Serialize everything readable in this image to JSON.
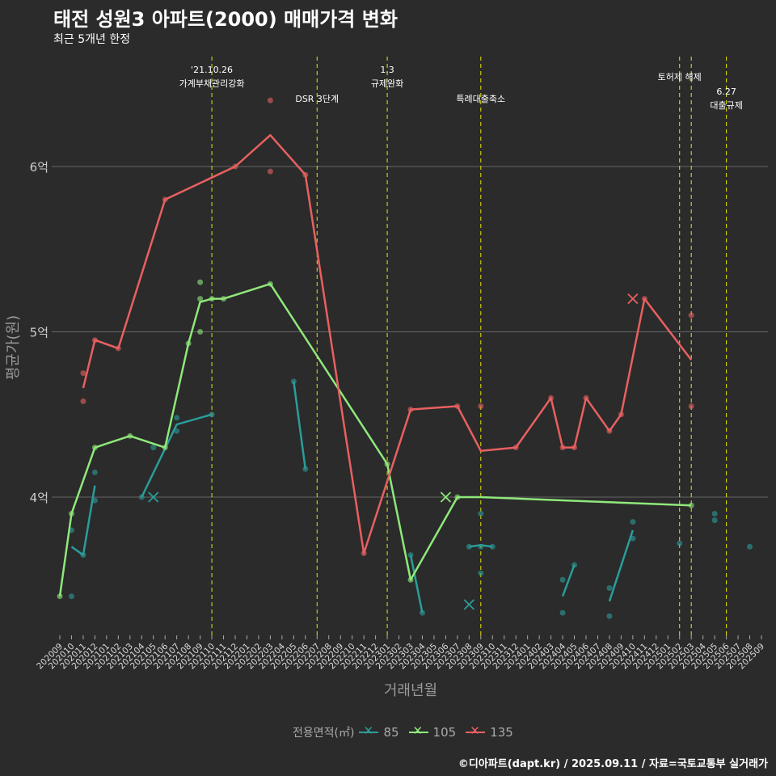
{
  "header": {
    "title": "태전 성원3 아파트(2000) 매매가격 변화",
    "subtitle": "최근 5개년 한정"
  },
  "footer": "©디아파트(dapt.kr) / 2025.09.11 / 자료=국토교통부 실거래가",
  "colors": {
    "bg": "#2b2b2b",
    "s85": "#2a9d9a",
    "s105": "#8fe87a",
    "s135": "#e86060",
    "vline": "#e6e600",
    "grid": "#666666"
  },
  "chart_data": {
    "type": "line",
    "title": "태전 성원3 아파트(2000) 매매가격 변화",
    "xlabel": "거래년월",
    "ylabel": "평균가(원)",
    "x_start": "202009",
    "x_end": "202509",
    "months": [
      "202009",
      "202010",
      "202011",
      "202012",
      "202101",
      "202102",
      "202103",
      "202104",
      "202105",
      "202106",
      "202107",
      "202108",
      "202109",
      "202110",
      "202111",
      "202112",
      "202201",
      "202202",
      "202203",
      "202204",
      "202205",
      "202206",
      "202207",
      "202208",
      "202209",
      "202210",
      "202211",
      "202212",
      "202301",
      "202302",
      "202303",
      "202304",
      "202305",
      "202306",
      "202307",
      "202308",
      "202309",
      "202310",
      "202311",
      "202312",
      "202401",
      "202402",
      "202403",
      "202404",
      "202405",
      "202406",
      "202407",
      "202408",
      "202409",
      "202410",
      "202411",
      "202412",
      "202501",
      "202502",
      "202503",
      "202504",
      "202505",
      "202506",
      "202507",
      "202508",
      "202509"
    ],
    "ylim": [
      3.15,
      6.45
    ],
    "yticks": [
      {
        "v": 4,
        "label": "4억"
      },
      {
        "v": 5,
        "label": "5억"
      },
      {
        "v": 6,
        "label": "6억"
      }
    ],
    "legend": {
      "title": "전용면적(㎡)",
      "placement": "bottom"
    },
    "series": [
      {
        "name": "85",
        "color": "#2a9d9a",
        "segments": [
          [
            [
              "202010",
              3.7
            ],
            [
              "202011",
              3.65
            ],
            [
              "202012",
              4.07
            ]
          ],
          [
            [
              "202104",
              4.0
            ],
            [
              "202107",
              4.44
            ],
            [
              "202110",
              4.5
            ]
          ],
          [
            [
              "202205",
              4.7
            ],
            [
              "202206",
              4.17
            ]
          ],
          [
            [
              "202303",
              3.65
            ],
            [
              "202304",
              3.3
            ]
          ],
          [
            [
              "202308",
              3.7
            ],
            [
              "202309",
              3.71
            ],
            [
              "202310",
              3.7
            ]
          ],
          [
            [
              "202404",
              3.4
            ],
            [
              "202405",
              3.59
            ]
          ],
          [
            [
              "202408",
              3.37
            ],
            [
              "202410",
              3.8
            ]
          ]
        ],
        "points": [
          [
            "202010",
            3.8
          ],
          [
            "202010",
            3.4
          ],
          [
            "202011",
            3.65
          ],
          [
            "202012",
            4.15
          ],
          [
            "202012",
            3.98
          ],
          [
            "202104",
            4.0
          ],
          [
            "202105",
            4.3
          ],
          [
            "202107",
            4.48
          ],
          [
            "202107",
            4.4
          ],
          [
            "202110",
            4.5
          ],
          [
            "202205",
            4.7
          ],
          [
            "202206",
            4.17
          ],
          [
            "202303",
            3.65
          ],
          [
            "202304",
            3.3
          ],
          [
            "202308",
            3.7
          ],
          [
            "202309",
            3.9
          ],
          [
            "202309",
            3.7
          ],
          [
            "202309",
            3.54
          ],
          [
            "202310",
            3.7
          ],
          [
            "202404",
            3.5
          ],
          [
            "202404",
            3.3
          ],
          [
            "202405",
            3.59
          ],
          [
            "202408",
            3.45
          ],
          [
            "202408",
            3.28
          ],
          [
            "202410",
            3.85
          ],
          [
            "202410",
            3.75
          ],
          [
            "202502",
            3.72
          ],
          [
            "202505",
            3.9
          ],
          [
            "202505",
            3.86
          ],
          [
            "202508",
            3.7
          ]
        ],
        "cancelled": [
          [
            "202105",
            4.0
          ],
          [
            "202308",
            3.35
          ]
        ]
      },
      {
        "name": "105",
        "color": "#8fe87a",
        "segments": [
          [
            [
              "202009",
              3.4
            ],
            [
              "202010",
              3.9
            ],
            [
              "202012",
              4.3
            ],
            [
              "202103",
              4.37
            ],
            [
              "202106",
              4.3
            ],
            [
              "202108",
              4.93
            ],
            [
              "202109",
              5.18
            ],
            [
              "202110",
              5.2
            ],
            [
              "202111",
              5.2
            ],
            [
              "202203",
              5.29
            ],
            [
              "202301",
              4.2
            ],
            [
              "202303",
              3.5
            ],
            [
              "202307",
              4.0
            ],
            [
              "202309",
              4.0
            ],
            [
              "202503",
              3.95
            ]
          ]
        ],
        "points": [
          [
            "202009",
            3.4
          ],
          [
            "202010",
            3.9
          ],
          [
            "202012",
            4.3
          ],
          [
            "202103",
            4.37
          ],
          [
            "202106",
            4.3
          ],
          [
            "202108",
            4.93
          ],
          [
            "202109",
            5.3
          ],
          [
            "202109",
            5.2
          ],
          [
            "202109",
            5.0
          ],
          [
            "202110",
            5.2
          ],
          [
            "202111",
            5.2
          ],
          [
            "202203",
            5.29
          ],
          [
            "202301",
            4.2
          ],
          [
            "202303",
            3.5
          ],
          [
            "202307",
            4.0
          ],
          [
            "202503",
            3.95
          ]
        ],
        "cancelled": [
          [
            "202306",
            4.0
          ]
        ]
      },
      {
        "name": "135",
        "color": "#e86060",
        "segments": [
          [
            [
              "202011",
              4.66
            ],
            [
              "202012",
              4.95
            ],
            [
              "202102",
              4.9
            ],
            [
              "202106",
              5.8
            ],
            [
              "202112",
              6.0
            ],
            [
              "202203",
              6.19
            ],
            [
              "202206",
              5.95
            ],
            [
              "202211",
              3.66
            ],
            [
              "202303",
              4.53
            ],
            [
              "202307",
              4.55
            ],
            [
              "202309",
              4.28
            ],
            [
              "202312",
              4.3
            ],
            [
              "202403",
              4.6
            ],
            [
              "202404",
              4.3
            ],
            [
              "202405",
              4.3
            ],
            [
              "202406",
              4.6
            ],
            [
              "202408",
              4.4
            ],
            [
              "202409",
              4.5
            ],
            [
              "202411",
              5.2
            ],
            [
              "202503",
              4.83
            ]
          ]
        ],
        "points": [
          [
            "202011",
            4.75
          ],
          [
            "202011",
            4.58
          ],
          [
            "202012",
            4.95
          ],
          [
            "202102",
            4.9
          ],
          [
            "202106",
            5.8
          ],
          [
            "202112",
            6.0
          ],
          [
            "202203",
            6.4
          ],
          [
            "202203",
            5.97
          ],
          [
            "202206",
            5.95
          ],
          [
            "202211",
            3.66
          ],
          [
            "202303",
            4.53
          ],
          [
            "202307",
            4.55
          ],
          [
            "202309",
            4.55
          ],
          [
            "202312",
            4.3
          ],
          [
            "202403",
            4.6
          ],
          [
            "202404",
            4.3
          ],
          [
            "202405",
            4.3
          ],
          [
            "202406",
            4.6
          ],
          [
            "202408",
            4.4
          ],
          [
            "202409",
            4.5
          ],
          [
            "202411",
            5.2
          ],
          [
            "202503",
            5.1
          ],
          [
            "202503",
            4.55
          ]
        ],
        "cancelled": [
          [
            "202410",
            5.2
          ]
        ]
      }
    ],
    "annotations": [
      {
        "month": "202110",
        "lines": [
          "'21.10.26",
          "가계부채관리강화"
        ],
        "row": 0
      },
      {
        "month": "202207",
        "lines": [
          "DSR 3단계"
        ],
        "row": 2
      },
      {
        "month": "202301",
        "lines": [
          "1.3",
          "규제완화"
        ],
        "row": 0
      },
      {
        "month": "202309",
        "lines": [
          "특례대출축소"
        ],
        "row": 2
      },
      {
        "month": "202502",
        "lines": [
          "토허제 해제"
        ],
        "row": 1
      },
      {
        "month": "202503",
        "lines": [],
        "row": 1
      },
      {
        "month": "202506",
        "lines": [
          "6.27",
          "대출규제"
        ],
        "row": 3
      }
    ]
  }
}
